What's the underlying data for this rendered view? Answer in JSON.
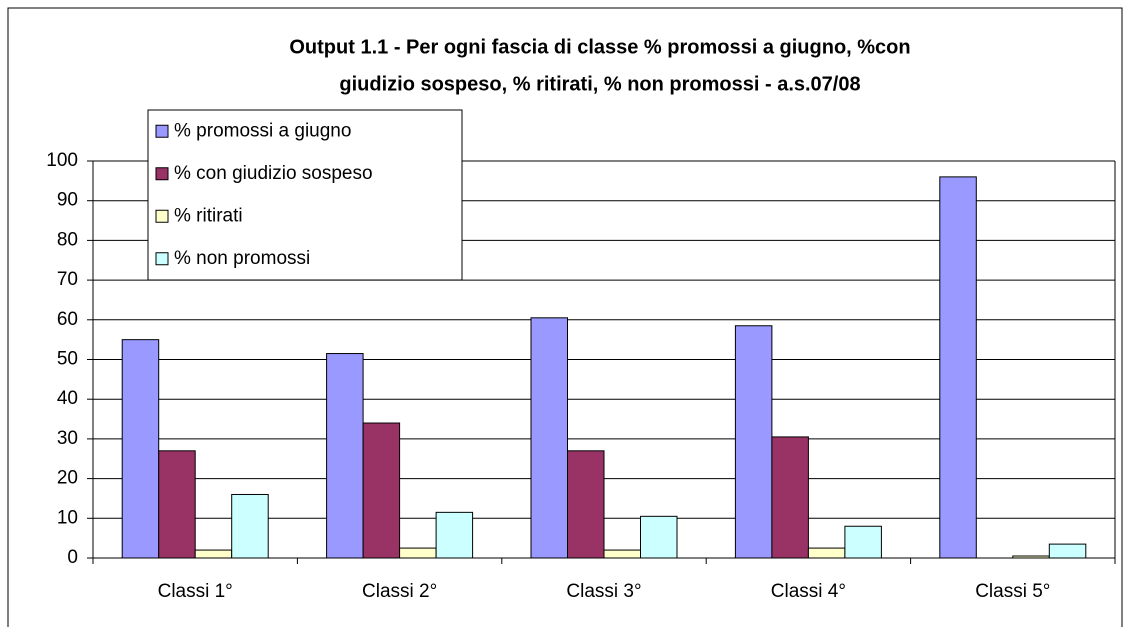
{
  "chart_data": {
    "type": "bar",
    "title": [
      "Output 1.1 - Per ogni fascia di classe % promossi a giugno,   %con",
      "giudizio sospeso, % ritirati, % non promossi - a.s.07/08"
    ],
    "categories": [
      "Classi 1°",
      "Classi 2°",
      "Classi 3°",
      "Classi 4°",
      "Classi 5°"
    ],
    "series": [
      {
        "name": "% promossi a giugno",
        "color": "#9999ff",
        "values": [
          55,
          51.5,
          60.5,
          58.5,
          96
        ]
      },
      {
        "name": "% con giudizio sospeso",
        "color": "#993366",
        "values": [
          27,
          34,
          27,
          30.5,
          0
        ]
      },
      {
        "name": "% ritirati",
        "color": "#ffffcc",
        "values": [
          2,
          2.5,
          2,
          2.5,
          0.5
        ]
      },
      {
        "name": "% non promossi",
        "color": "#ccffff",
        "values": [
          16,
          11.5,
          10.5,
          8,
          3.5
        ]
      }
    ],
    "ylim": [
      0,
      100
    ],
    "yticks": [
      0,
      10,
      20,
      30,
      40,
      50,
      60,
      70,
      80,
      90,
      100
    ],
    "grid": true
  }
}
